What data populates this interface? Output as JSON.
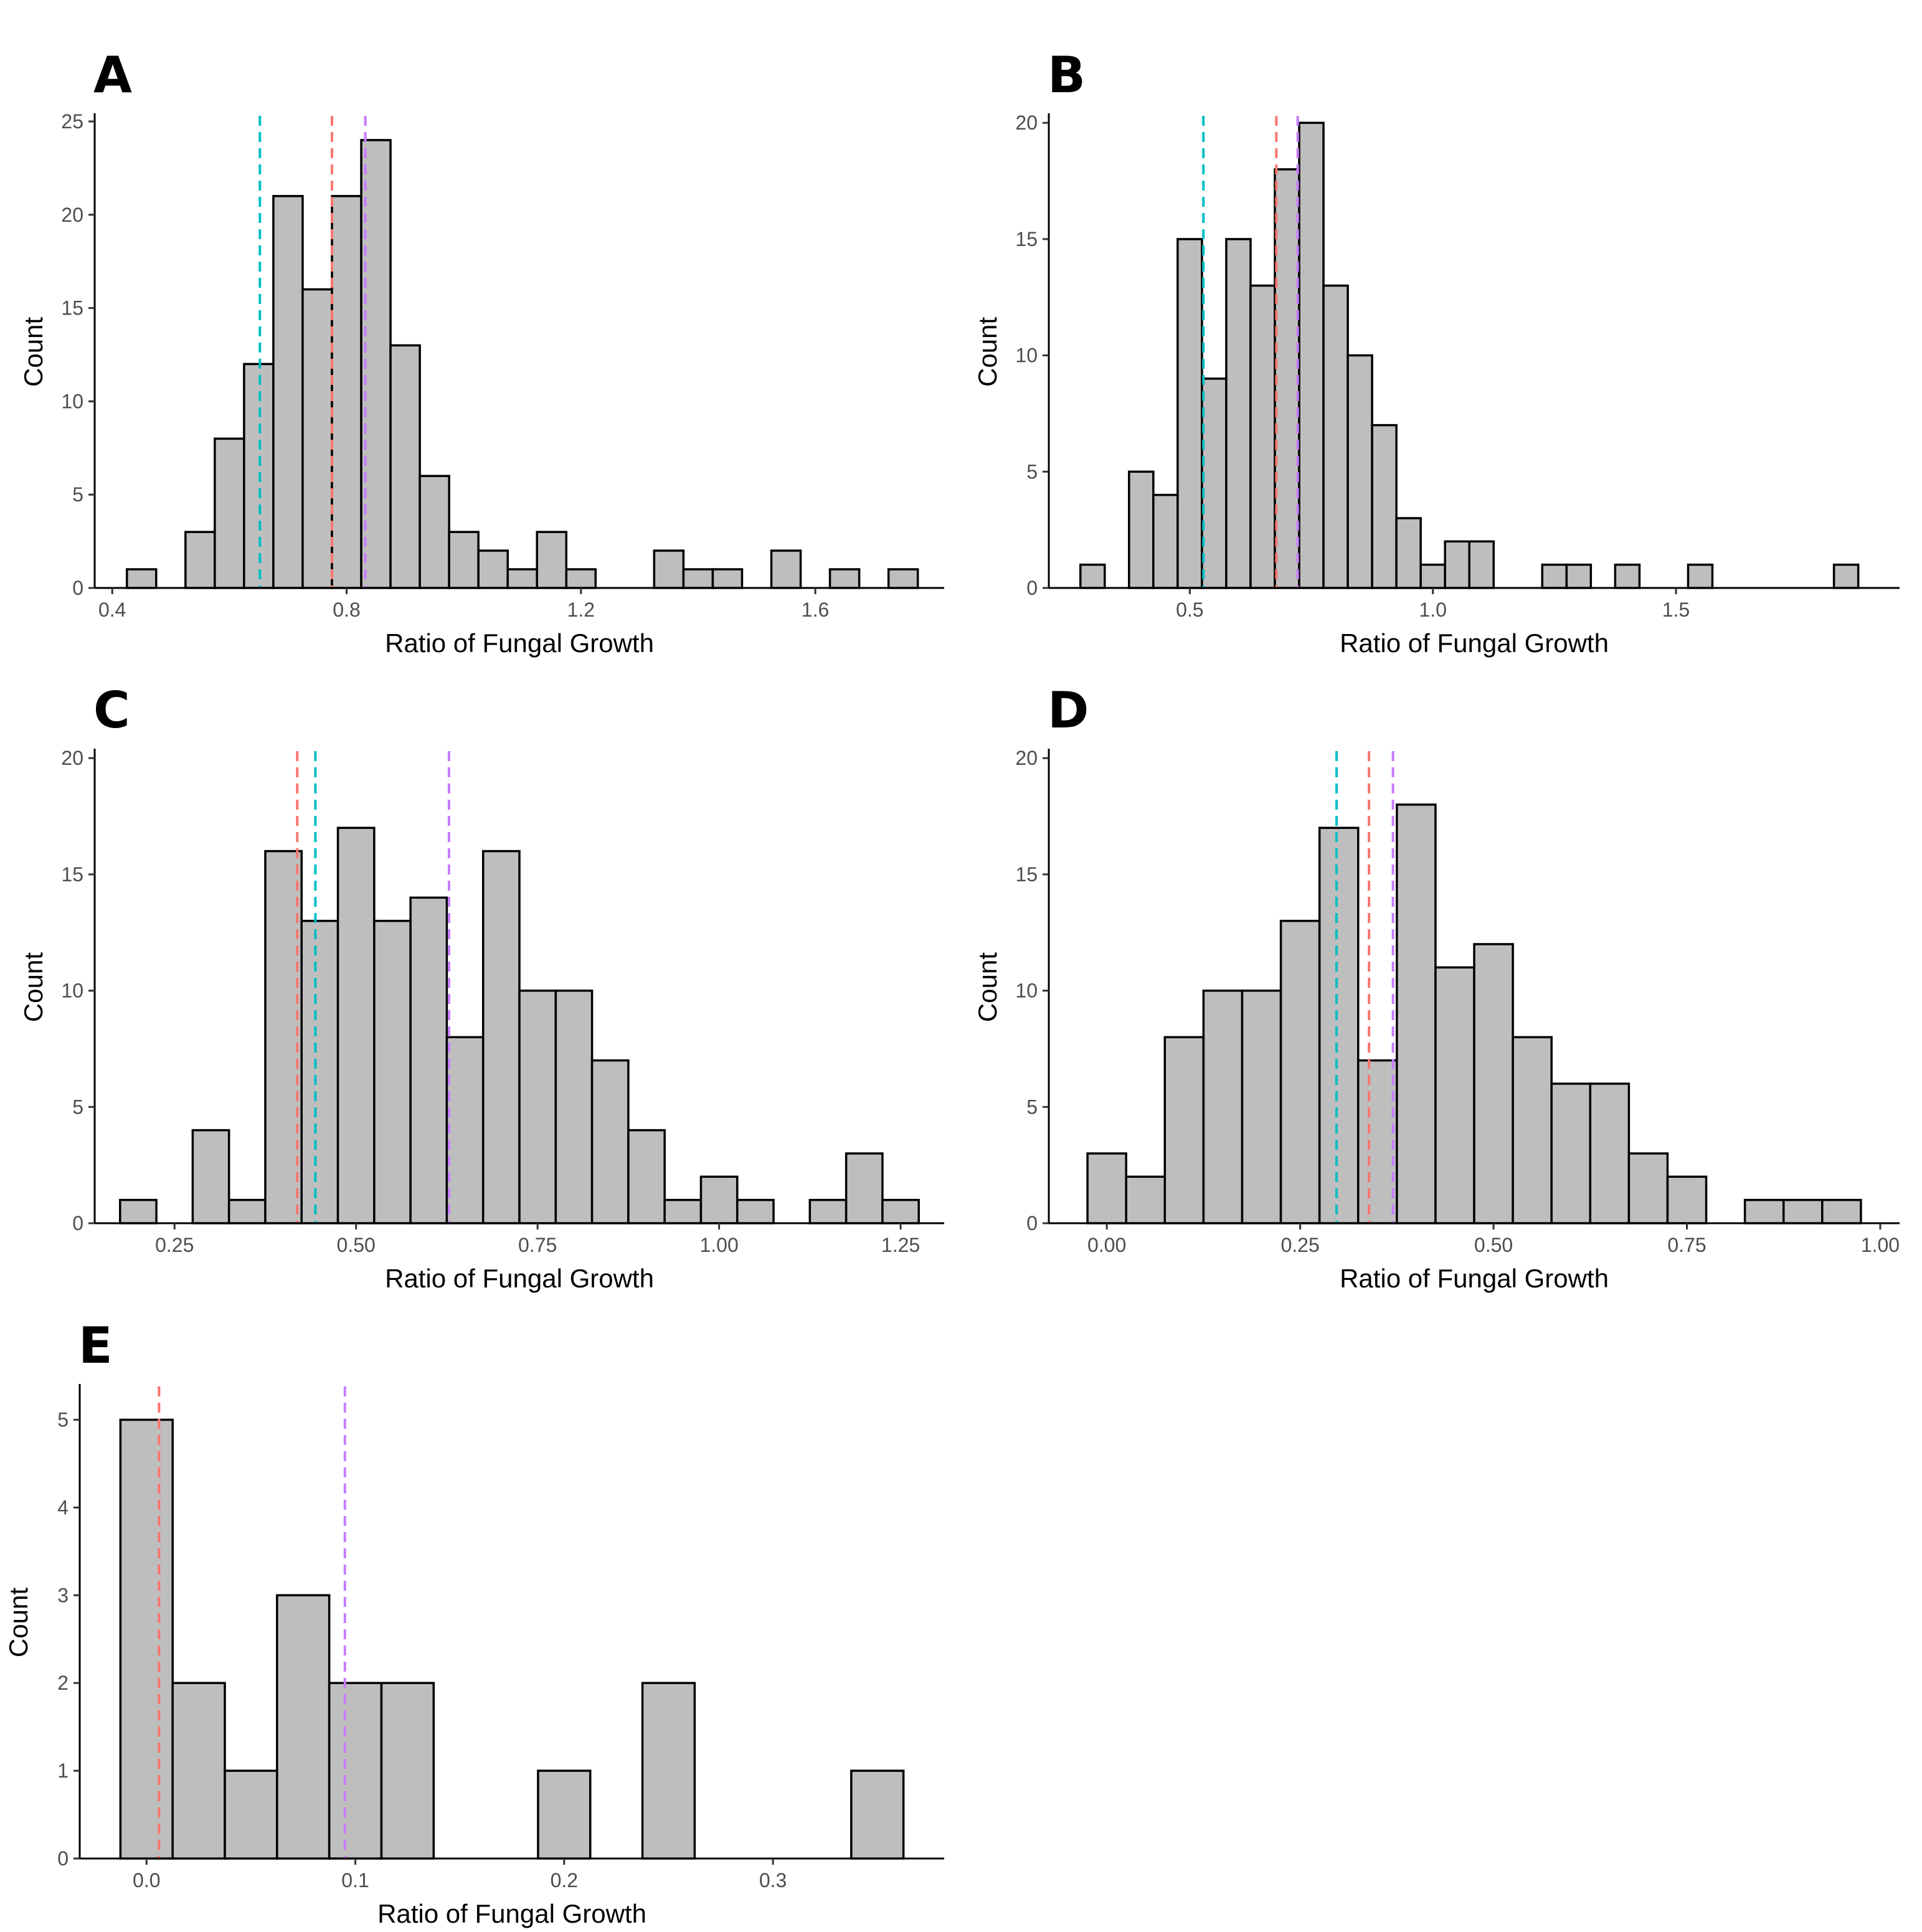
{
  "colors": {
    "bar_fill": "#bebebe",
    "bar_stroke": "#000000",
    "teal": "#00bfc4",
    "red": "#f8766d",
    "purple": "#c77cff"
  },
  "chart_data": [
    {
      "panel": "A",
      "type": "bar",
      "subtype": "histogram",
      "xlabel": "Ratio of Fungal Growth",
      "ylabel": "Count",
      "xlim": [
        0.37,
        1.82
      ],
      "ylim": [
        0,
        25.3
      ],
      "xticks": [
        0.4,
        0.8,
        1.2,
        1.6
      ],
      "xtick_labels": [
        "0.4",
        "0.8",
        "1.2",
        "1.6"
      ],
      "yticks": [
        0,
        5,
        10,
        15,
        20,
        25
      ],
      "ytick_labels": [
        "0",
        "5",
        "10",
        "15",
        "20",
        "25"
      ],
      "bin_width": 0.05,
      "bins": [
        {
          "x": 0.45,
          "count": 1
        },
        {
          "x": 0.55,
          "count": 3
        },
        {
          "x": 0.6,
          "count": 8
        },
        {
          "x": 0.65,
          "count": 12
        },
        {
          "x": 0.7,
          "count": 21
        },
        {
          "x": 0.75,
          "count": 16
        },
        {
          "x": 0.8,
          "count": 21
        },
        {
          "x": 0.85,
          "count": 24
        },
        {
          "x": 0.9,
          "count": 13
        },
        {
          "x": 0.95,
          "count": 6
        },
        {
          "x": 1.0,
          "count": 3
        },
        {
          "x": 1.05,
          "count": 2
        },
        {
          "x": 1.1,
          "count": 1
        },
        {
          "x": 1.15,
          "count": 3
        },
        {
          "x": 1.2,
          "count": 1
        },
        {
          "x": 1.35,
          "count": 2
        },
        {
          "x": 1.4,
          "count": 1
        },
        {
          "x": 1.45,
          "count": 1
        },
        {
          "x": 1.55,
          "count": 2
        },
        {
          "x": 1.65,
          "count": 1
        },
        {
          "x": 1.75,
          "count": 1
        }
      ],
      "reference_lines": [
        {
          "x": 0.652,
          "color": "#00bfc4"
        },
        {
          "x": 0.775,
          "color": "#f8766d"
        },
        {
          "x": 0.832,
          "color": "#c77cff"
        }
      ]
    },
    {
      "panel": "B",
      "type": "bar",
      "subtype": "histogram",
      "xlabel": "Ratio of Fungal Growth",
      "ylabel": "Count",
      "xlim": [
        0.21,
        1.96
      ],
      "ylim": [
        0,
        20.3
      ],
      "xticks": [
        0.5,
        1.0,
        1.5
      ],
      "xtick_labels": [
        "0.5",
        "1.0",
        "1.5"
      ],
      "yticks": [
        0,
        5,
        10,
        15,
        20
      ],
      "ytick_labels": [
        "0",
        "5",
        "10",
        "15",
        "20"
      ],
      "bin_width": 0.05,
      "bins": [
        {
          "x": 0.3,
          "count": 1
        },
        {
          "x": 0.4,
          "count": 5
        },
        {
          "x": 0.45,
          "count": 4
        },
        {
          "x": 0.5,
          "count": 15
        },
        {
          "x": 0.55,
          "count": 9
        },
        {
          "x": 0.6,
          "count": 15
        },
        {
          "x": 0.65,
          "count": 13
        },
        {
          "x": 0.7,
          "count": 18
        },
        {
          "x": 0.75,
          "count": 20
        },
        {
          "x": 0.8,
          "count": 13
        },
        {
          "x": 0.85,
          "count": 10
        },
        {
          "x": 0.9,
          "count": 7
        },
        {
          "x": 0.95,
          "count": 3
        },
        {
          "x": 1.0,
          "count": 1
        },
        {
          "x": 1.05,
          "count": 2
        },
        {
          "x": 1.1,
          "count": 2
        },
        {
          "x": 1.25,
          "count": 1
        },
        {
          "x": 1.3,
          "count": 1
        },
        {
          "x": 1.4,
          "count": 1
        },
        {
          "x": 1.55,
          "count": 1
        },
        {
          "x": 1.85,
          "count": 1
        }
      ],
      "reference_lines": [
        {
          "x": 0.528,
          "color": "#00bfc4"
        },
        {
          "x": 0.678,
          "color": "#f8766d"
        },
        {
          "x": 0.722,
          "color": "#c77cff"
        }
      ]
    },
    {
      "panel": "C",
      "type": "bar",
      "subtype": "histogram",
      "xlabel": "Ratio of Fungal Growth",
      "ylabel": "Count",
      "xlim": [
        0.14,
        1.31
      ],
      "ylim": [
        0,
        20.3
      ],
      "xticks": [
        0.25,
        0.5,
        0.75,
        1.0,
        1.25
      ],
      "xtick_labels": [
        "0.25",
        "0.50",
        "0.75",
        "1.00",
        "1.25"
      ],
      "yticks": [
        0,
        5,
        10,
        15,
        20
      ],
      "ytick_labels": [
        "0",
        "5",
        "10",
        "15",
        "20"
      ],
      "bin_width": 0.05,
      "bins": [
        {
          "x": 0.2,
          "count": 1
        },
        {
          "x": 0.3,
          "count": 4
        },
        {
          "x": 0.35,
          "count": 1
        },
        {
          "x": 0.4,
          "count": 16
        },
        {
          "x": 0.45,
          "count": 13
        },
        {
          "x": 0.5,
          "count": 17
        },
        {
          "x": 0.55,
          "count": 13
        },
        {
          "x": 0.6,
          "count": 14
        },
        {
          "x": 0.65,
          "count": 8
        },
        {
          "x": 0.7,
          "count": 16
        },
        {
          "x": 0.75,
          "count": 10
        },
        {
          "x": 0.8,
          "count": 10
        },
        {
          "x": 0.85,
          "count": 7
        },
        {
          "x": 0.9,
          "count": 4
        },
        {
          "x": 0.95,
          "count": 1
        },
        {
          "x": 1.0,
          "count": 2
        },
        {
          "x": 1.05,
          "count": 1
        },
        {
          "x": 1.15,
          "count": 1
        },
        {
          "x": 1.2,
          "count": 3
        },
        {
          "x": 1.25,
          "count": 1
        }
      ],
      "reference_lines": [
        {
          "x": 0.419,
          "color": "#f8766d"
        },
        {
          "x": 0.444,
          "color": "#00bfc4"
        },
        {
          "x": 0.628,
          "color": "#c77cff"
        }
      ]
    },
    {
      "panel": "D",
      "type": "bar",
      "subtype": "histogram",
      "xlabel": "Ratio of Fungal Growth",
      "ylabel": "Count",
      "xlim": [
        -0.075,
        1.025
      ],
      "ylim": [
        0,
        20.3
      ],
      "xticks": [
        0,
        0.25,
        0.5,
        0.75,
        1.0
      ],
      "xtick_labels": [
        "0.00",
        "0.25",
        "0.50",
        "0.75",
        "1.00"
      ],
      "yticks": [
        0,
        5,
        10,
        15,
        20
      ],
      "ytick_labels": [
        "0",
        "5",
        "10",
        "15",
        "20"
      ],
      "bin_width": 0.05,
      "bins": [
        {
          "x": 0.0,
          "count": 3
        },
        {
          "x": 0.05,
          "count": 2
        },
        {
          "x": 0.1,
          "count": 8
        },
        {
          "x": 0.15,
          "count": 10
        },
        {
          "x": 0.2,
          "count": 10
        },
        {
          "x": 0.25,
          "count": 13
        },
        {
          "x": 0.3,
          "count": 17
        },
        {
          "x": 0.35,
          "count": 7
        },
        {
          "x": 0.4,
          "count": 18
        },
        {
          "x": 0.45,
          "count": 11
        },
        {
          "x": 0.5,
          "count": 12
        },
        {
          "x": 0.55,
          "count": 8
        },
        {
          "x": 0.6,
          "count": 6
        },
        {
          "x": 0.65,
          "count": 6
        },
        {
          "x": 0.7,
          "count": 3
        },
        {
          "x": 0.75,
          "count": 2
        },
        {
          "x": 0.85,
          "count": 1
        },
        {
          "x": 0.9,
          "count": 1
        },
        {
          "x": 0.95,
          "count": 1
        }
      ],
      "reference_lines": [
        {
          "x": 0.297,
          "color": "#00bfc4"
        },
        {
          "x": 0.339,
          "color": "#f8766d"
        },
        {
          "x": 0.37,
          "color": "#c77cff"
        }
      ]
    },
    {
      "panel": "E",
      "type": "bar",
      "subtype": "histogram",
      "xlabel": "Ratio of Fungal Growth",
      "ylabel": "Count",
      "xlim": [
        -0.032,
        0.382
      ],
      "ylim": [
        0,
        5.38
      ],
      "xticks": [
        0,
        0.1,
        0.2,
        0.3
      ],
      "xtick_labels": [
        "0.0",
        "0.1",
        "0.2",
        "0.3"
      ],
      "yticks": [
        0,
        1,
        2,
        3,
        4,
        5
      ],
      "ytick_labels": [
        "0",
        "1",
        "2",
        "3",
        "4",
        "5"
      ],
      "bin_width": 0.025,
      "bins": [
        {
          "x": 0.0,
          "count": 5
        },
        {
          "x": 0.025,
          "count": 2
        },
        {
          "x": 0.05,
          "count": 1
        },
        {
          "x": 0.075,
          "count": 3
        },
        {
          "x": 0.1,
          "count": 2
        },
        {
          "x": 0.125,
          "count": 2
        },
        {
          "x": 0.2,
          "count": 1
        },
        {
          "x": 0.25,
          "count": 2
        },
        {
          "x": 0.35,
          "count": 1
        }
      ],
      "reference_lines": [
        {
          "x": 0.006,
          "color": "#f8766d"
        },
        {
          "x": 0.095,
          "color": "#c77cff"
        }
      ]
    }
  ]
}
